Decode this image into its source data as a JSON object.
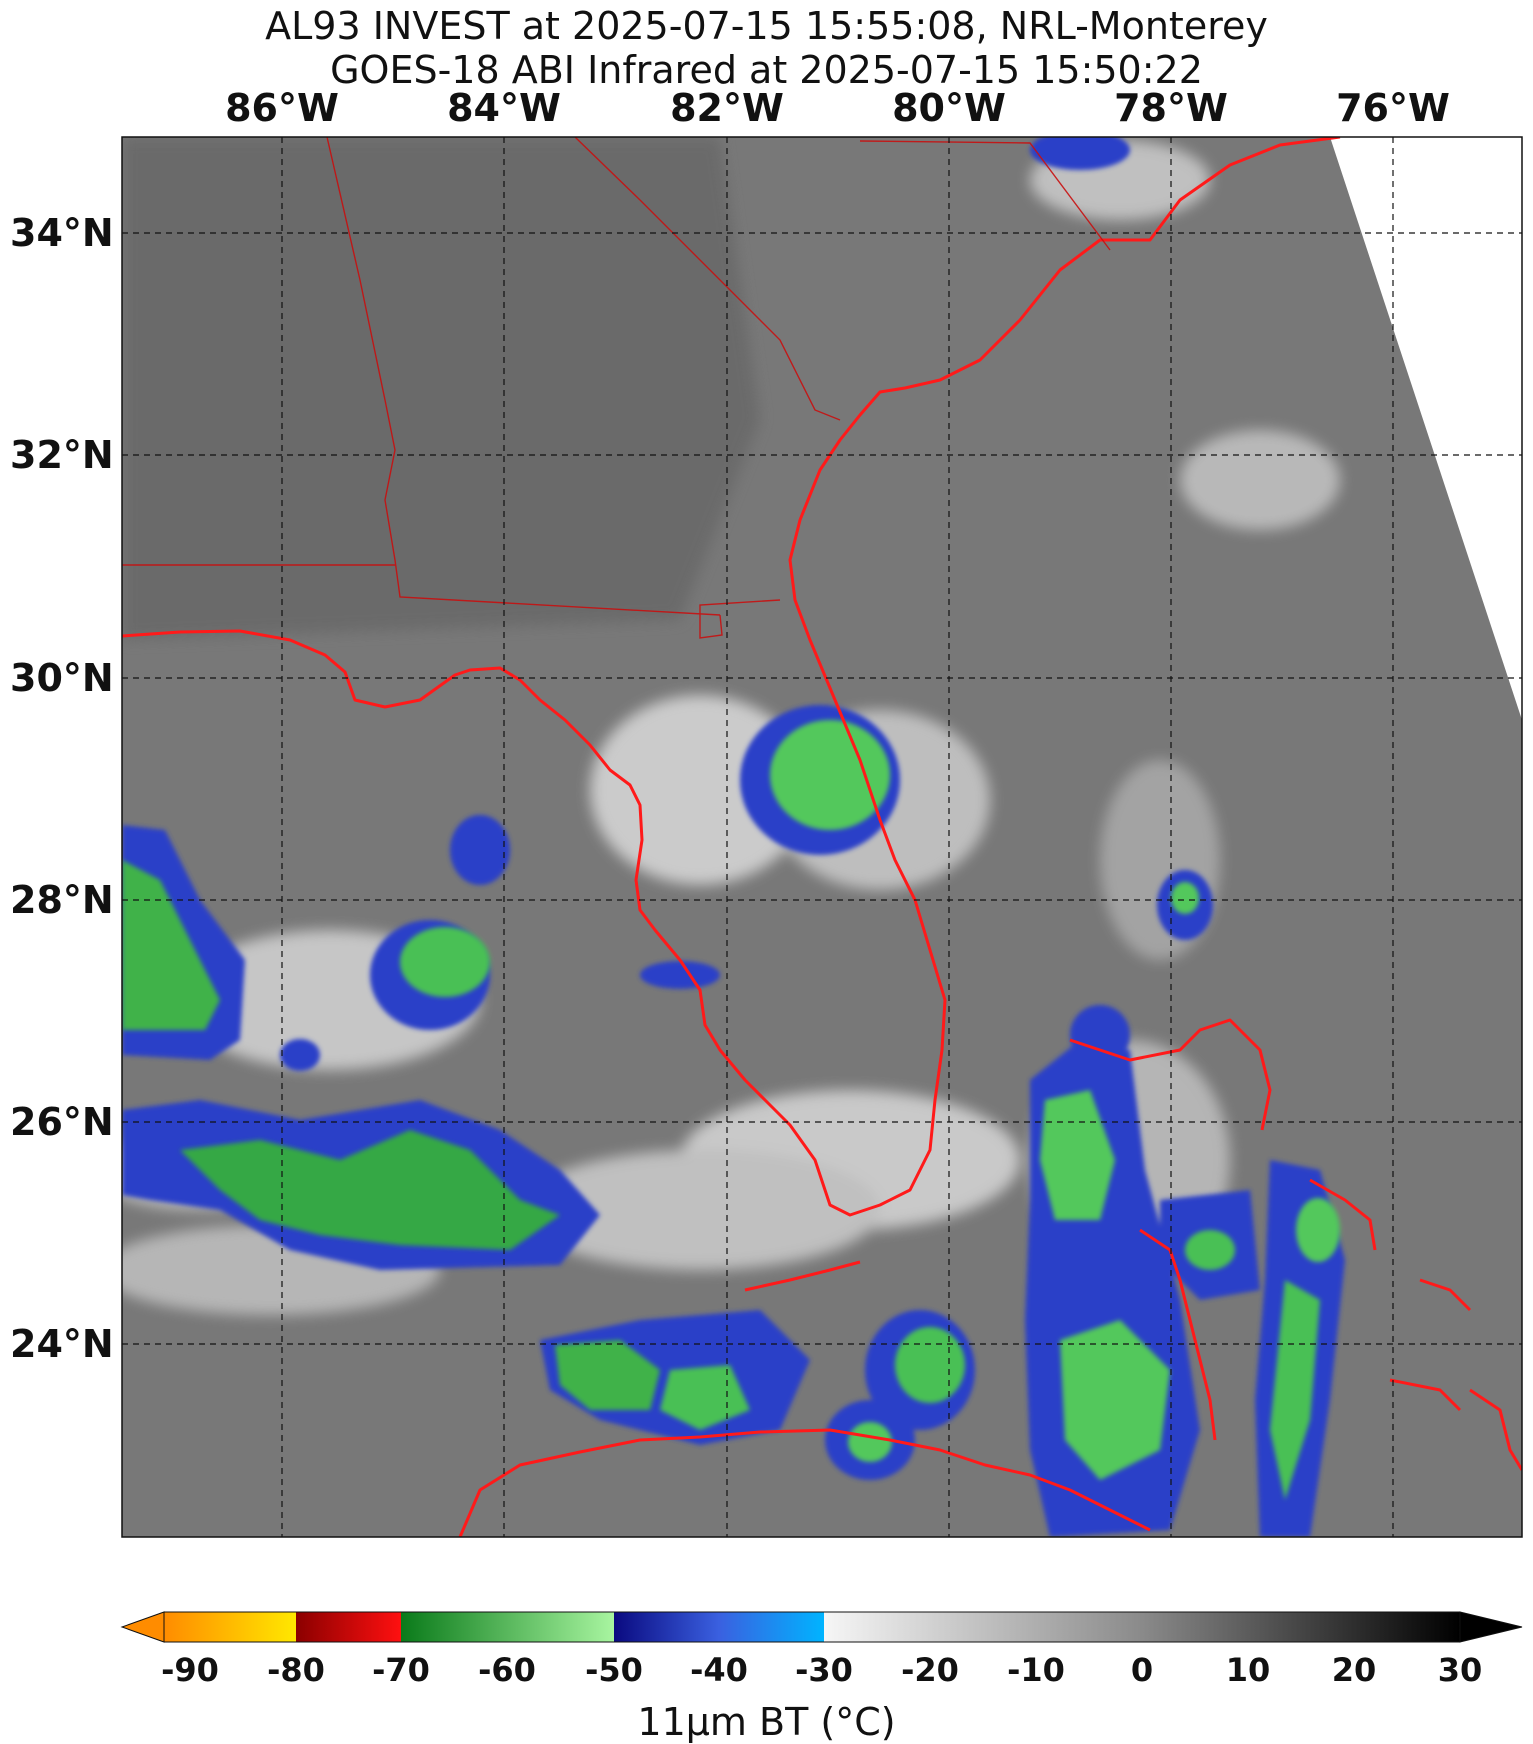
{
  "title": {
    "line1": "AL93 INVEST at 2025-07-15 15:55:08, NRL-Monterey",
    "line2": "GOES-18 ABI Infrared at 2025-07-15 15:50:22"
  },
  "map": {
    "lon_range": [
      -87.45,
      -74.85
    ],
    "lat_range": [
      22.3,
      34.9
    ],
    "longitude_ticks": [
      {
        "value": -86,
        "label": "86°W"
      },
      {
        "value": -84,
        "label": "84°W"
      },
      {
        "value": -82,
        "label": "82°W"
      },
      {
        "value": -80,
        "label": "80°W"
      },
      {
        "value": -78,
        "label": "78°W"
      },
      {
        "value": -76,
        "label": "76°W"
      }
    ],
    "latitude_ticks": [
      {
        "value": 34,
        "label": "34°N"
      },
      {
        "value": 32,
        "label": "32°N"
      },
      {
        "value": 30,
        "label": "30°N"
      },
      {
        "value": 28,
        "label": "28°N"
      },
      {
        "value": 26,
        "label": "26°N"
      },
      {
        "value": 24,
        "label": "24°N"
      }
    ],
    "gridlines": "dashed",
    "coastline_color": "#ff1a1a",
    "background_color": "#767676"
  },
  "colorbar": {
    "label": "11μm BT (°C)",
    "ticks": [
      "-90",
      "-80",
      "-70",
      "-60",
      "-50",
      "-40",
      "-30",
      "-20",
      "-10",
      "0",
      "10",
      "20",
      "30"
    ],
    "range": [
      -90,
      30
    ],
    "segments": [
      {
        "from": -90,
        "to": -80,
        "colors": [
          "#ff8c00",
          "#ffe800"
        ]
      },
      {
        "from": -80,
        "to": -70,
        "colors": [
          "#8b0000",
          "#ff1010"
        ]
      },
      {
        "from": -70,
        "to": -50,
        "colors": [
          "#0a7a1a",
          "#a8f5a0"
        ]
      },
      {
        "from": -50,
        "to": -30,
        "colors": [
          "#0a0a80",
          "#00b4ff"
        ]
      },
      {
        "from": -30,
        "to": 30,
        "colors": [
          "#f4f4f4",
          "#000000"
        ]
      }
    ],
    "extend": "both"
  }
}
